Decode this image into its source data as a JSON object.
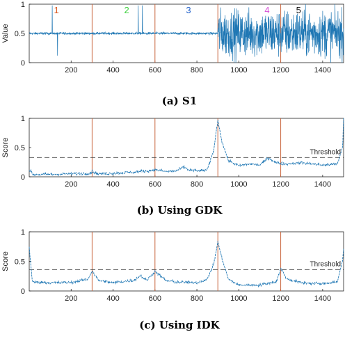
{
  "chart_data": [
    {
      "type": "line",
      "caption": "(a) S1",
      "ylabel": "Value",
      "xlim": [
        0,
        1500
      ],
      "ylim": [
        0,
        1
      ],
      "x_ticks": [
        200,
        400,
        600,
        800,
        1000,
        1200,
        1400
      ],
      "y_ticks": [
        0,
        0.5,
        1
      ],
      "change_points": [
        300,
        600,
        900,
        1200
      ],
      "segment_labels": [
        {
          "text": "1",
          "x": 130,
          "color": "#d9541a"
        },
        {
          "text": "2",
          "x": 465,
          "color": "#3ed13e"
        },
        {
          "text": "3",
          "x": 760,
          "color": "#1f5fc9"
        },
        {
          "text": "4",
          "x": 1135,
          "color": "#d64fd6"
        },
        {
          "text": "5",
          "x": 1285,
          "color": "#111111"
        }
      ],
      "series": [
        {
          "baseline": 0.5,
          "noise_low": 0.02,
          "noise_high": 0.4,
          "spikes_up": [
            110,
            520,
            540
          ],
          "spikes_down": [
            135
          ],
          "high_variance_start": 900
        }
      ]
    },
    {
      "type": "line",
      "caption": "(b) Using GDK",
      "ylabel": "Score",
      "xlim": [
        0,
        1500
      ],
      "ylim": [
        0,
        1
      ],
      "x_ticks": [
        200,
        400,
        600,
        800,
        1000,
        1200,
        1400
      ],
      "y_ticks": [
        0,
        0.5,
        1
      ],
      "change_points": [
        300,
        600,
        900,
        1200
      ],
      "threshold": {
        "label": "Threshold",
        "value": 0.33
      },
      "series": [
        {
          "points": [
            [
              0,
              0.12
            ],
            [
              20,
              0.04
            ],
            [
              100,
              0.04
            ],
            [
              200,
              0.05
            ],
            [
              290,
              0.06
            ],
            [
              300,
              0.09
            ],
            [
              330,
              0.05
            ],
            [
              400,
              0.06
            ],
            [
              500,
              0.08
            ],
            [
              560,
              0.1
            ],
            [
              600,
              0.12
            ],
            [
              650,
              0.09
            ],
            [
              700,
              0.1
            ],
            [
              740,
              0.17
            ],
            [
              760,
              0.12
            ],
            [
              800,
              0.1
            ],
            [
              850,
              0.12
            ],
            [
              880,
              0.45
            ],
            [
              900,
              0.97
            ],
            [
              920,
              0.6
            ],
            [
              950,
              0.28
            ],
            [
              1000,
              0.19
            ],
            [
              1050,
              0.22
            ],
            [
              1100,
              0.2
            ],
            [
              1140,
              0.32
            ],
            [
              1180,
              0.24
            ],
            [
              1220,
              0.22
            ],
            [
              1300,
              0.24
            ],
            [
              1400,
              0.2
            ],
            [
              1470,
              0.22
            ],
            [
              1495,
              0.5
            ],
            [
              1500,
              1.0
            ]
          ]
        }
      ]
    },
    {
      "type": "line",
      "caption": "(c) Using IDK",
      "ylabel": "Score",
      "xlim": [
        0,
        1500
      ],
      "ylim": [
        0,
        1
      ],
      "x_ticks": [
        200,
        400,
        600,
        800,
        1000,
        1200,
        1400
      ],
      "y_ticks": [
        0,
        0.5,
        1
      ],
      "change_points": [
        300,
        600,
        900,
        1200
      ],
      "threshold": {
        "label": "Threshold",
        "value": 0.36
      },
      "series": [
        {
          "points": [
            [
              0,
              0.75
            ],
            [
              15,
              0.15
            ],
            [
              100,
              0.14
            ],
            [
              200,
              0.14
            ],
            [
              280,
              0.2
            ],
            [
              300,
              0.34
            ],
            [
              330,
              0.18
            ],
            [
              400,
              0.14
            ],
            [
              500,
              0.18
            ],
            [
              530,
              0.26
            ],
            [
              560,
              0.18
            ],
            [
              600,
              0.33
            ],
            [
              650,
              0.18
            ],
            [
              700,
              0.15
            ],
            [
              800,
              0.14
            ],
            [
              850,
              0.2
            ],
            [
              880,
              0.45
            ],
            [
              900,
              0.83
            ],
            [
              920,
              0.55
            ],
            [
              950,
              0.2
            ],
            [
              1000,
              0.1
            ],
            [
              1100,
              0.1
            ],
            [
              1180,
              0.16
            ],
            [
              1200,
              0.38
            ],
            [
              1230,
              0.2
            ],
            [
              1300,
              0.14
            ],
            [
              1400,
              0.12
            ],
            [
              1470,
              0.16
            ],
            [
              1495,
              0.5
            ],
            [
              1500,
              0.7
            ]
          ]
        }
      ]
    }
  ]
}
